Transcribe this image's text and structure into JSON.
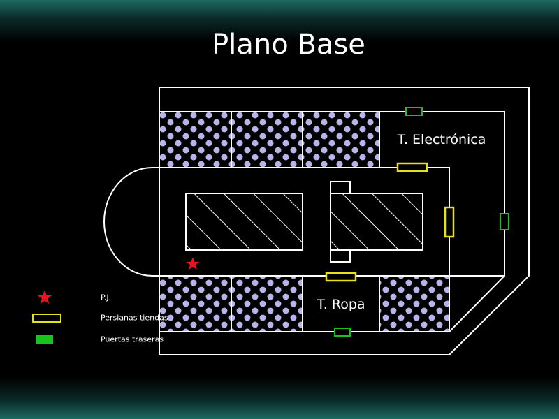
{
  "title": "Plano Base",
  "rooms": {
    "electronics": "T. Electrónica",
    "clothing": "T. Ropa"
  },
  "legend": {
    "player": "P.J.",
    "shutters": "Persianas tiendas",
    "back_doors": "Puertas traseras"
  },
  "colors": {
    "walls": "#ffffff",
    "star": "#e8141e",
    "shutter": "#e8e01c",
    "door": "#17c41c",
    "dots": "#b9b3ec"
  }
}
